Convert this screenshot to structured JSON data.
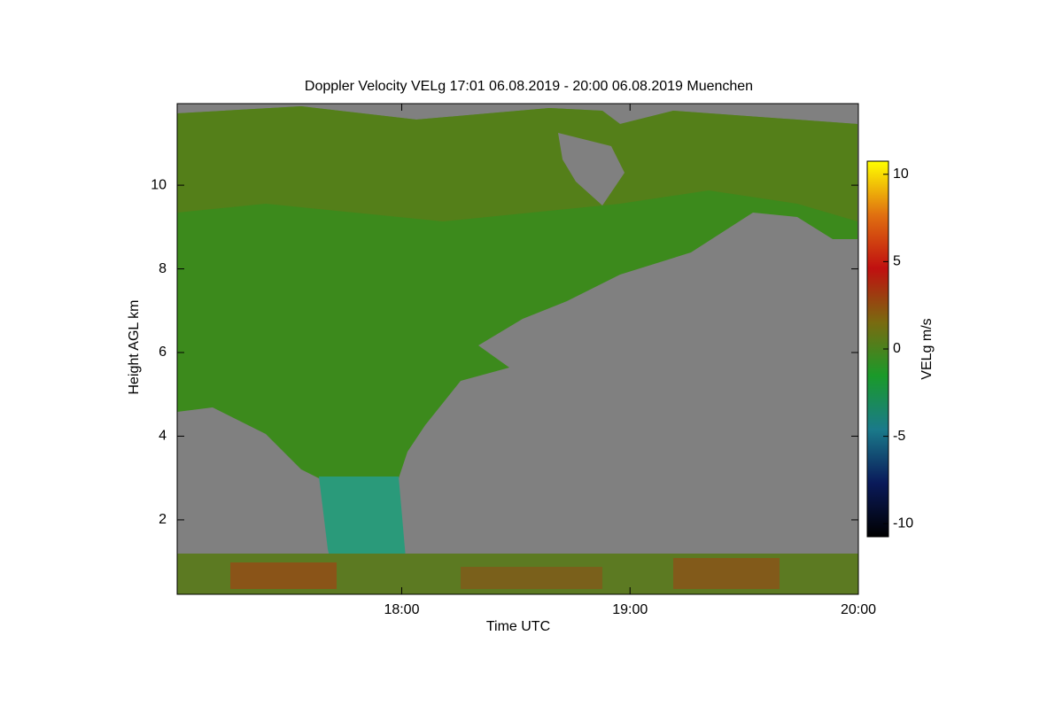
{
  "chart_data": {
    "type": "heatmap",
    "title": "Doppler Velocity VELg   17:01 06.08.2019 - 20:00 06.08.2019 Muenchen",
    "x_label": "Time UTC",
    "y_label": "Height AGL km",
    "xlim": [
      17.0167,
      20
    ],
    "xticks": [
      {
        "value": 18,
        "label": "18:00"
      },
      {
        "value": 19,
        "label": "19:00"
      },
      {
        "value": 20,
        "label": "20:00"
      }
    ],
    "ylim": [
      0.22,
      11.95
    ],
    "yticks": [
      2,
      4,
      6,
      8,
      10
    ],
    "colorbar_label": "VELg m/s",
    "clim": [
      -10.75,
      10.75
    ],
    "cbar_ticks": [
      -10,
      -5,
      0,
      5,
      10
    ],
    "colormap": [
      "#000000",
      "#0a1a5a",
      "#1a7a8a",
      "#1a9a2a",
      "#7a6a10",
      "#c01010",
      "#e07010",
      "#ffff00"
    ]
  }
}
